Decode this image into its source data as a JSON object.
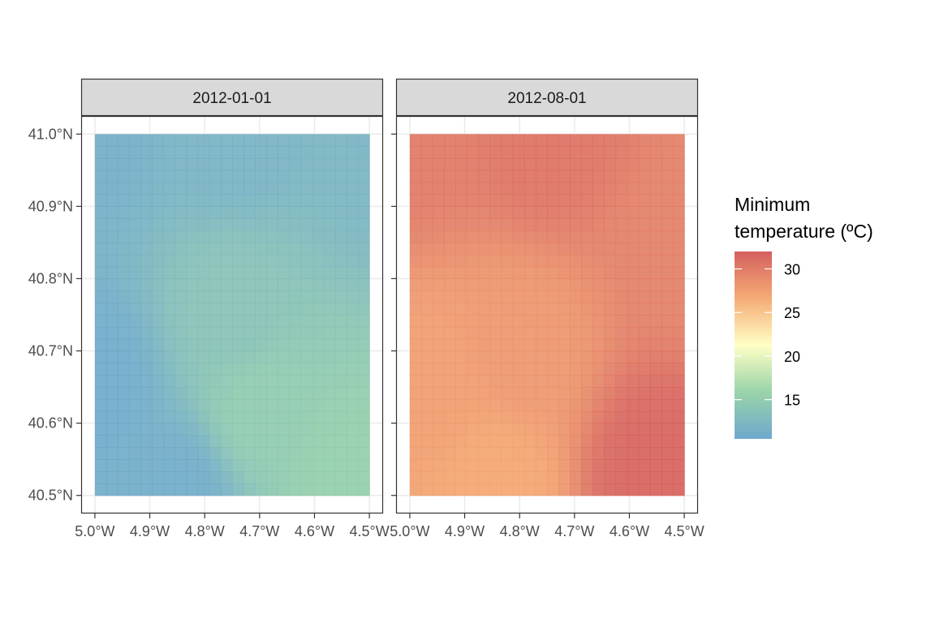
{
  "chart_data": {
    "type": "heatmap",
    "subtype": "faceted raster map",
    "colormap": "Spectral (reversed)",
    "facets": [
      {
        "label": "2012-01-01",
        "raster_summary": {
          "min": 10.5,
          "max": 15.5,
          "pattern": "coolest (blue) along the west and southwest edges; warmer green-teal band through the centre and south; warmest pale green in the south-east corner"
        },
        "samples": [
          {
            "lon": -5.0,
            "lat": 41.0,
            "value": 11.5
          },
          {
            "lon": -4.75,
            "lat": 41.0,
            "value": 12.0
          },
          {
            "lon": -4.5,
            "lat": 41.0,
            "value": 12.2
          },
          {
            "lon": -4.75,
            "lat": 40.75,
            "value": 13.8
          },
          {
            "lon": -5.0,
            "lat": 40.65,
            "value": 11.0
          },
          {
            "lon": -4.7,
            "lat": 40.62,
            "value": 14.8
          },
          {
            "lon": -4.85,
            "lat": 40.5,
            "value": 11.2
          },
          {
            "lon": -4.55,
            "lat": 40.53,
            "value": 15.3
          }
        ]
      },
      {
        "label": "2012-08-01",
        "raster_summary": {
          "min": 26.5,
          "max": 32.0,
          "pattern": "uniformly warm red; slightly cooler orange along the south and west; hottest dark red in the south-east corner"
        },
        "samples": [
          {
            "lon": -5.0,
            "lat": 41.0,
            "value": 30.0
          },
          {
            "lon": -4.75,
            "lat": 41.0,
            "value": 30.5
          },
          {
            "lon": -4.5,
            "lat": 40.85,
            "value": 29.5
          },
          {
            "lon": -4.8,
            "lat": 40.7,
            "value": 28.0
          },
          {
            "lon": -4.95,
            "lat": 40.65,
            "value": 27.5
          },
          {
            "lon": -4.85,
            "lat": 40.52,
            "value": 26.8
          },
          {
            "lon": -4.55,
            "lat": 40.53,
            "value": 31.5
          }
        ]
      }
    ],
    "x": {
      "ticks": [
        -5.0,
        -4.9,
        -4.8,
        -4.7,
        -4.6,
        -4.5
      ],
      "tick_labels": [
        "5.0°W",
        "4.9°W",
        "4.8°W",
        "4.7°W",
        "4.6°W",
        "4.5°W"
      ],
      "range": [
        -5.025,
        -4.475
      ]
    },
    "y": {
      "ticks": [
        40.5,
        40.6,
        40.7,
        40.8,
        40.9,
        41.0
      ],
      "tick_labels": [
        "40.5°N",
        "40.6°N",
        "40.7°N",
        "40.8°N",
        "40.9°N",
        "41.0°N"
      ],
      "range": [
        40.475,
        41.025
      ]
    },
    "legend": {
      "title_lines": [
        "Minimum",
        "temperature (ºC)"
      ],
      "range": [
        10.5,
        32.0
      ],
      "breaks": [
        15,
        20,
        25,
        30
      ],
      "break_labels": [
        "15",
        "20",
        "25",
        "30"
      ],
      "placement": "right",
      "gradient_colors": [
        "#5e9ec9",
        "#8fcfa0",
        "#ffffbf",
        "#f5a266",
        "#cf4e4e"
      ]
    },
    "grid": true,
    "theme": "bw",
    "colors": {
      "strip_fill": "#d9d9d9",
      "panel_border": "#333333",
      "gridline": "#ebebeb"
    }
  }
}
